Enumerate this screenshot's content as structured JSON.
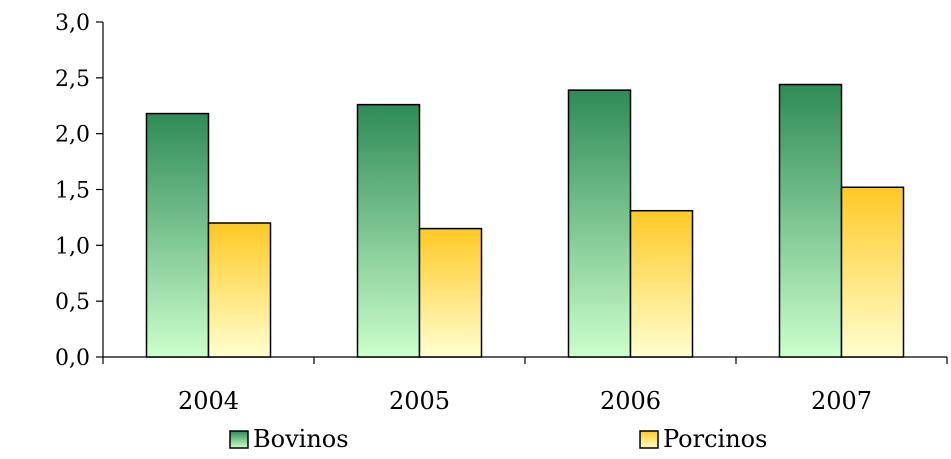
{
  "chart_data": {
    "type": "bar",
    "categories": [
      "2004",
      "2005",
      "2006",
      "2007"
    ],
    "series": [
      {
        "name": "Bovinos",
        "values": [
          2.18,
          2.26,
          2.39,
          2.44
        ]
      },
      {
        "name": "Porcinos",
        "values": [
          1.2,
          1.15,
          1.31,
          1.52
        ]
      }
    ],
    "ylim": [
      0,
      3
    ],
    "yticks": [
      0,
      0.5,
      1,
      1.5,
      2,
      2.5,
      3
    ],
    "ytick_labels": [
      "0,0",
      "0,5",
      "1,0",
      "1,5",
      "2,0",
      "2,5",
      "3,0"
    ],
    "grid": false,
    "legend_position": "bottom",
    "colors": {
      "Bovinos": {
        "top": "#2e8b57",
        "bottom": "#ccffcc"
      },
      "Porcinos": {
        "top": "#ffc926",
        "bottom": "#ffffd0"
      },
      "axis": "#000000"
    }
  }
}
